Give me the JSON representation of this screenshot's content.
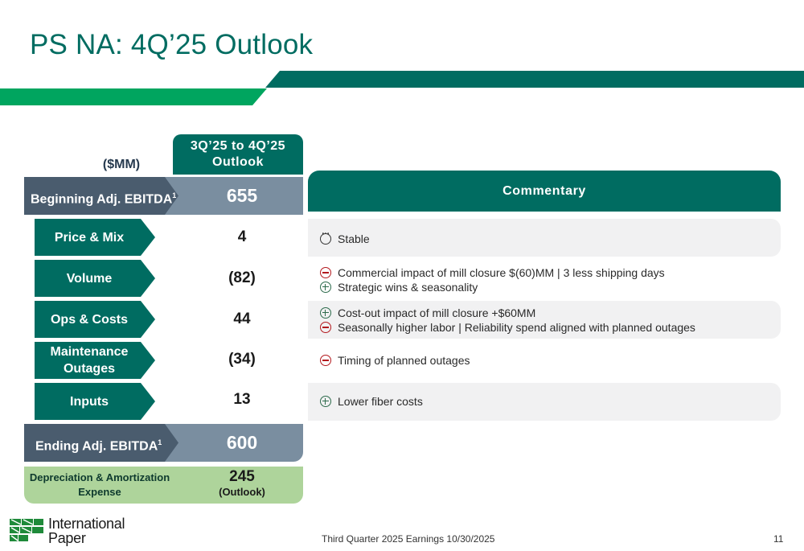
{
  "title": "PS NA:  4Q’25 Outlook",
  "units_label": "($MM)",
  "outlook_header": "3Q’25 to 4Q’25\nOutlook",
  "commentary_header": "Commentary",
  "beginning": {
    "label": "Beginning Adj. EBITDA",
    "sup": "1",
    "value": "655"
  },
  "rows": [
    {
      "label": "Price & Mix",
      "value": "4",
      "comments": [
        {
          "icon": "neutral-icon",
          "text": "Stable"
        }
      ]
    },
    {
      "label": "Volume",
      "value": "(82)",
      "comments": [
        {
          "icon": "minus-icon",
          "text": "Commercial impact of mill closure $(60)MM | 3 less shipping days"
        },
        {
          "icon": "plus-icon",
          "text": "Strategic wins & seasonality"
        }
      ]
    },
    {
      "label": "Ops & Costs",
      "value": "44",
      "comments": [
        {
          "icon": "plus-icon",
          "text": "Cost-out impact of mill closure +$60MM"
        },
        {
          "icon": "minus-icon",
          "text": "Seasonally higher labor | Reliability spend aligned with planned outages"
        }
      ]
    },
    {
      "label": "Maintenance Outages",
      "value": "(34)",
      "comments": [
        {
          "icon": "minus-icon",
          "text": "Timing of planned outages"
        }
      ]
    },
    {
      "label": "Inputs",
      "value": "13",
      "comments": [
        {
          "icon": "plus-icon",
          "text": "Lower fiber costs"
        }
      ]
    }
  ],
  "ending": {
    "label": "Ending Adj. EBITDA",
    "sup": "1",
    "value": "600"
  },
  "da": {
    "label": "Depreciation & Amortization Expense",
    "value": "245",
    "sub": "(Outlook)"
  },
  "footer": "Third Quarter 2025 Earnings 10/30/2025",
  "page_number": "11",
  "logo": {
    "line1": "International",
    "line2": "Paper"
  },
  "colors": {
    "teal": "#006c61",
    "green": "#00a55f",
    "slate": "#4a5c6e",
    "slate_light": "#7a8ea0",
    "light_green": "#aed49b",
    "minus": "#b3191e",
    "plus": "#2d6b4c"
  }
}
